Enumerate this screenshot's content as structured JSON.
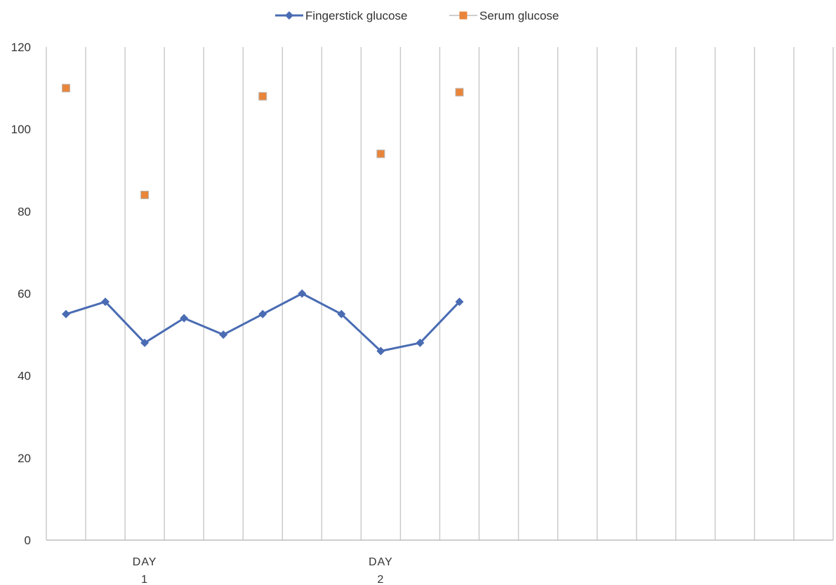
{
  "chart_data": {
    "type": "line",
    "title": "",
    "xlabel": "",
    "ylabel": "",
    "ylim": [
      0,
      120
    ],
    "yticks": [
      0,
      20,
      40,
      60,
      80,
      100,
      120
    ],
    "grid": "vertical",
    "legend_position": "top",
    "category_count": 20,
    "category_labels": [
      {
        "index": 2,
        "lines": [
          "DAY",
          "1"
        ]
      },
      {
        "index": 8,
        "lines": [
          "DAY",
          "2"
        ]
      }
    ],
    "series": [
      {
        "name": "Fingerstick glucose",
        "color": "#4a6cb3",
        "marker": "diamond",
        "line": true,
        "points": [
          {
            "x": 0,
            "y": 55
          },
          {
            "x": 1,
            "y": 58
          },
          {
            "x": 2,
            "y": 48
          },
          {
            "x": 3,
            "y": 54
          },
          {
            "x": 4,
            "y": 50
          },
          {
            "x": 5,
            "y": 55
          },
          {
            "x": 6,
            "y": 60
          },
          {
            "x": 7,
            "y": 55
          },
          {
            "x": 8,
            "y": 46
          },
          {
            "x": 9,
            "y": 48
          },
          {
            "x": 10,
            "y": 58
          }
        ]
      },
      {
        "name": "Serum glucose",
        "color": "#e8853a",
        "marker": "square",
        "line": false,
        "points": [
          {
            "x": 0,
            "y": 110
          },
          {
            "x": 2,
            "y": 84
          },
          {
            "x": 5,
            "y": 108
          },
          {
            "x": 8,
            "y": 94
          },
          {
            "x": 10,
            "y": 109
          }
        ]
      }
    ]
  }
}
